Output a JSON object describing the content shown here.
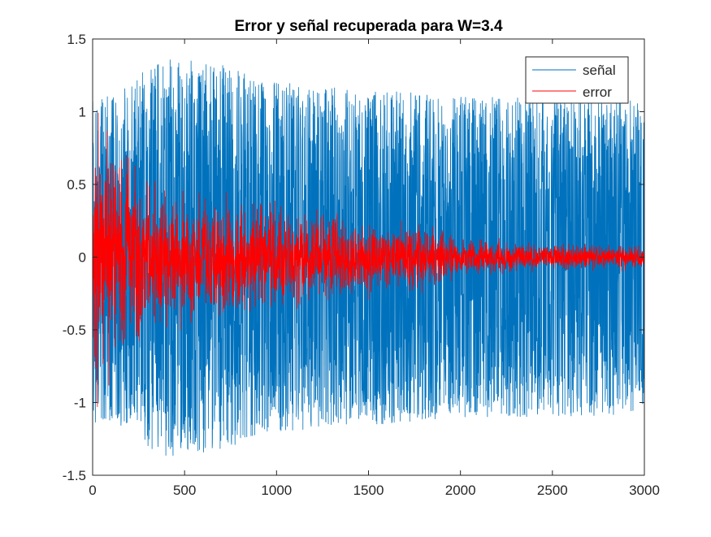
{
  "chart_data": {
    "type": "line",
    "title": "Error y señal recuperada para W=3.4",
    "xlabel": "",
    "ylabel": "",
    "xlim": [
      0,
      3000
    ],
    "ylim": [
      -1.5,
      1.5
    ],
    "xticks": [
      0,
      500,
      1000,
      1500,
      2000,
      2500,
      3000
    ],
    "xtick_labels": [
      "0",
      "500",
      "1000",
      "1500",
      "2000",
      "2500",
      "3000"
    ],
    "yticks": [
      -1.5,
      -1,
      -0.5,
      0,
      0.5,
      1,
      1.5
    ],
    "ytick_labels": [
      "-1.5",
      "-1",
      "-0.5",
      "0",
      "0.5",
      "1",
      "1.5"
    ],
    "grid": false,
    "legend_position": "top-right",
    "series": [
      {
        "name": "señal",
        "color": "#0072BD",
        "n_points": 3000,
        "envelope_x": [
          0,
          100,
          200,
          300,
          400,
          500,
          600,
          700,
          800,
          900,
          1000,
          1200,
          1400,
          1600,
          1800,
          2000,
          2500,
          3000
        ],
        "envelope_amplitude": [
          1.15,
          1.12,
          1.2,
          1.3,
          1.38,
          1.35,
          1.38,
          1.33,
          1.28,
          1.22,
          1.2,
          1.2,
          1.15,
          1.15,
          1.12,
          1.1,
          1.1,
          1.08
        ]
      },
      {
        "name": "error",
        "color": "#FF0000",
        "n_points": 3000,
        "envelope_x": [
          0,
          50,
          100,
          150,
          200,
          300,
          400,
          500,
          600,
          800,
          1000,
          1200,
          1300,
          1400,
          1600,
          1800,
          2000,
          2500,
          3000
        ],
        "envelope_amplitude": [
          1.2,
          1.18,
          1.05,
          0.95,
          0.85,
          0.7,
          0.62,
          0.58,
          0.55,
          0.5,
          0.45,
          0.42,
          0.45,
          0.35,
          0.28,
          0.3,
          0.16,
          0.12,
          0.1
        ]
      }
    ]
  }
}
